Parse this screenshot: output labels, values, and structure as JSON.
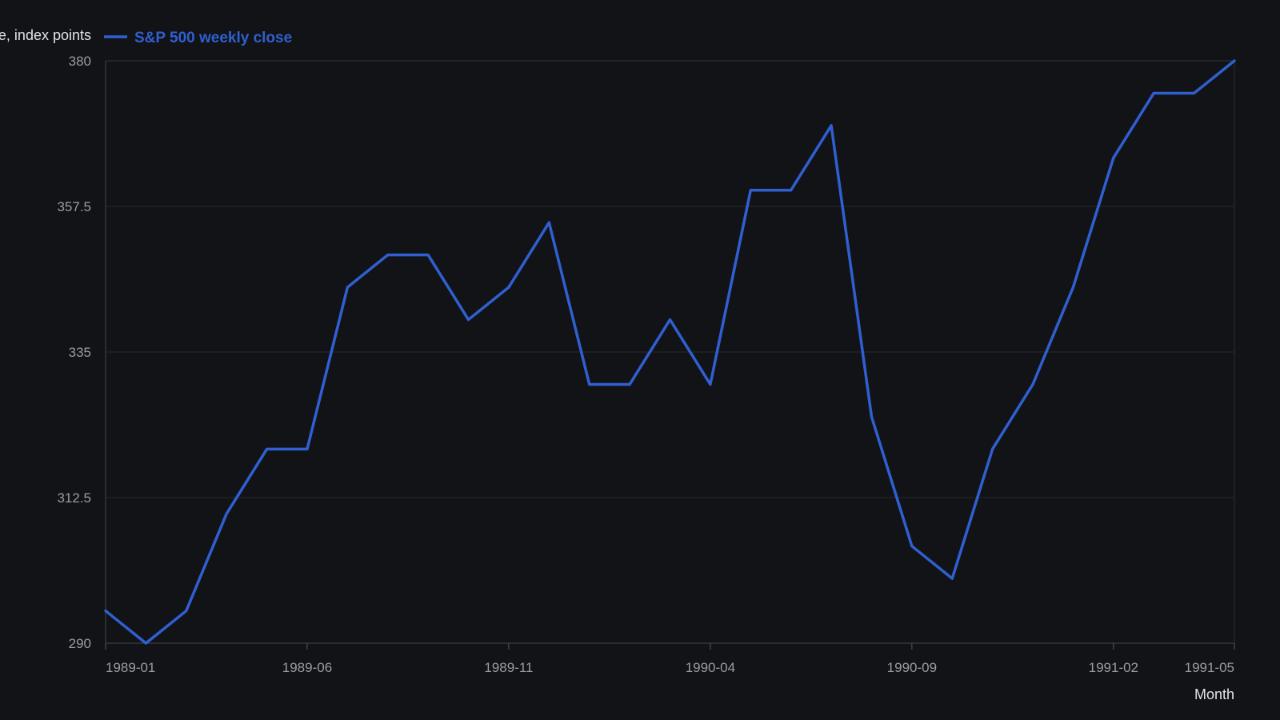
{
  "chart_data": {
    "type": "line",
    "title": "",
    "xlabel": "Month",
    "ylabel": "Close, index points",
    "ylim": [
      290,
      380
    ],
    "y_ticks": [
      290,
      312.5,
      335,
      357.5,
      380
    ],
    "y_tick_labels": [
      "290",
      "312.5",
      "335",
      "357.5",
      "380"
    ],
    "x_tick_labels": [
      "1989-01",
      "1989-06",
      "1989-11",
      "1990-04",
      "1990-09",
      "1991-02",
      "1991-05"
    ],
    "x_ticks": [
      0,
      5,
      10,
      15,
      20,
      25,
      28
    ],
    "grid": true,
    "legend": "top-left",
    "series": [
      {
        "name": "S&P 500 weekly close",
        "color": "#2f5fd0",
        "x": [
          0,
          1,
          2,
          3,
          4,
          5,
          6,
          7,
          8,
          9,
          10,
          11,
          12,
          13,
          14,
          15,
          16,
          17,
          18,
          19,
          20,
          21,
          22,
          23,
          24,
          25,
          26,
          27,
          28
        ],
        "values": [
          295,
          290,
          295,
          310,
          320,
          320,
          345,
          350,
          350,
          340,
          345,
          355,
          330,
          330,
          340,
          330,
          360,
          360,
          370,
          325,
          305,
          300,
          320,
          330,
          345,
          365,
          375,
          375,
          380
        ]
      }
    ]
  }
}
